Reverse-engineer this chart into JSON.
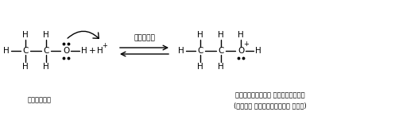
{
  "bg_color": "#ffffff",
  "fig_width": 4.97,
  "fig_height": 1.46,
  "label_ethanol": "एथेनॉल",
  "label_protonated": "प्रोटॉनित ऐल्कोहॉल",
  "label_oxonium": "(एथिल ओक्सोनियम आयन)",
  "label_teevra": "तीव्र",
  "fs": 7.5,
  "fs_lbl": 6.0,
  "fs_sm": 5.5,
  "fs_super": 5.0
}
